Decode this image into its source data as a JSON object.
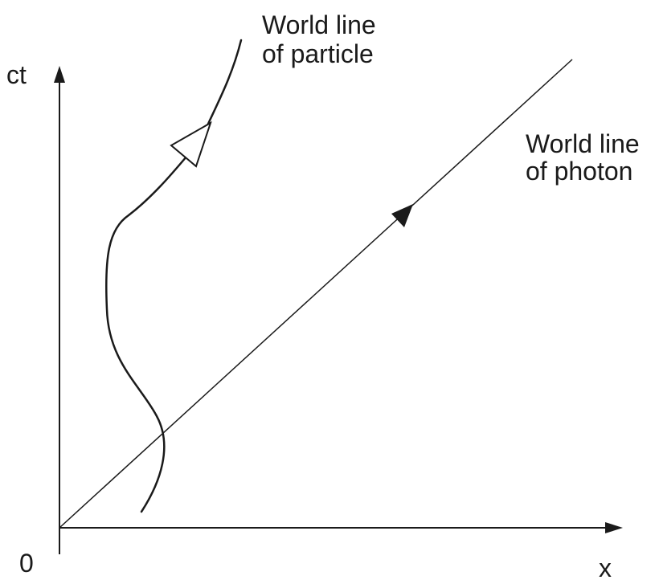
{
  "axes": {
    "vertical_label": "ct",
    "horizontal_label": "x",
    "origin_label": "0"
  },
  "particle": {
    "label_line1": "World line",
    "label_line2": "of particle",
    "arrow_style": "hollow"
  },
  "photon": {
    "label_line1": "World line",
    "label_line2": "of photon",
    "arrow_style": "filled"
  },
  "colors": {
    "ink": "#1a1a1a",
    "background": "#ffffff"
  }
}
